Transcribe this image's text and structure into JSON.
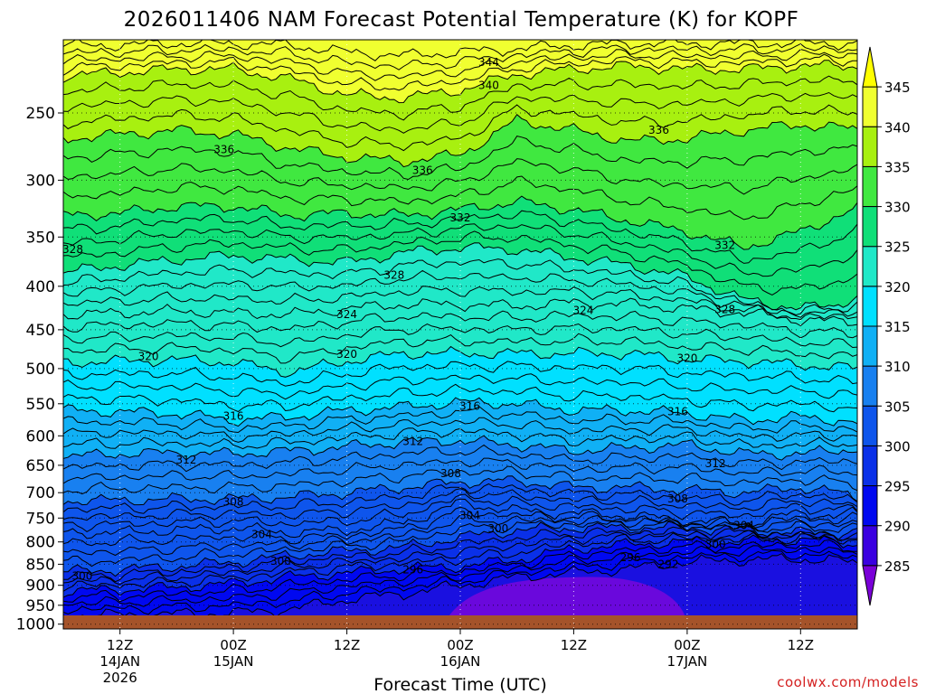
{
  "chart_data": {
    "type": "heatmap",
    "title": "2026011406 NAM Forecast Potential Temperature (K) for KOPF",
    "xlabel": "Forecast Time (UTC)",
    "ylabel": "",
    "credit": "coolwx.com/models",
    "y_axis": {
      "unit": "hPa",
      "scale": "log",
      "range": [
        1013,
        205
      ],
      "inverted": true,
      "ticks": [
        1000,
        950,
        900,
        850,
        800,
        750,
        700,
        650,
        600,
        550,
        500,
        450,
        400,
        350,
        300,
        250
      ]
    },
    "x_axis": {
      "unit": "forecast hour",
      "range": [
        0,
        84
      ],
      "ticks": [
        {
          "hour": 6,
          "lines": [
            "12Z",
            "14JAN",
            "2026"
          ]
        },
        {
          "hour": 18,
          "lines": [
            "00Z",
            "15JAN"
          ]
        },
        {
          "hour": 30,
          "lines": [
            "12Z"
          ]
        },
        {
          "hour": 42,
          "lines": [
            "00Z",
            "16JAN"
          ]
        },
        {
          "hour": 54,
          "lines": [
            "12Z"
          ]
        },
        {
          "hour": 66,
          "lines": [
            "00Z",
            "17JAN"
          ]
        },
        {
          "hour": 78,
          "lines": [
            "12Z"
          ]
        }
      ]
    },
    "grid": true,
    "colorbar": {
      "levels": [
        285,
        290,
        295,
        300,
        305,
        310,
        315,
        320,
        325,
        330,
        335,
        340,
        345
      ],
      "labels": [
        "285",
        "290",
        "295",
        "300",
        "305",
        "310",
        "315",
        "320",
        "325",
        "330",
        "335",
        "340",
        "345"
      ],
      "colors": [
        "#7a00d8",
        "#3a00e0",
        "#0008f0",
        "#0a30e8",
        "#0e55ec",
        "#1880f0",
        "#10b0f5",
        "#00e0ff",
        "#20e8c8",
        "#10df78",
        "#40e840",
        "#a8f010",
        "#f0ff30",
        "#ffff00"
      ]
    },
    "isentropes_hPa": [
      {
        "theta": 292,
        "pressure": [
          975,
          975,
          972,
          970,
          960,
          935,
          920,
          900,
          880,
          870,
          860,
          845,
          840,
          838,
          842,
          848
        ]
      },
      {
        "theta": 296,
        "pressure": [
          915,
          910,
          905,
          895,
          880,
          870,
          860,
          855,
          840,
          815,
          805,
          800,
          800,
          795,
          800,
          805
        ]
      },
      {
        "theta": 300,
        "pressure": [
          868,
          862,
          855,
          845,
          830,
          820,
          812,
          790,
          775,
          770,
          770,
          770,
          775,
          780,
          780,
          778
        ]
      },
      {
        "theta": 304,
        "pressure": [
          780,
          780,
          775,
          770,
          780,
          775,
          760,
          720,
          735,
          740,
          745,
          755,
          760,
          740,
          745,
          740
        ]
      },
      {
        "theta": 308,
        "pressure": [
          715,
          715,
          712,
          712,
          708,
          700,
          690,
          680,
          678,
          690,
          690,
          695,
          700,
          690,
          700,
          710
        ]
      },
      {
        "theta": 312,
        "pressure": [
          635,
          630,
          628,
          630,
          625,
          618,
          610,
          608,
          615,
          625,
          620,
          615,
          630,
          630,
          625,
          620
        ]
      },
      {
        "theta": 316,
        "pressure": [
          560,
          562,
          565,
          575,
          570,
          560,
          555,
          548,
          550,
          560,
          560,
          565,
          575,
          570,
          575,
          580
        ]
      },
      {
        "theta": 320,
        "pressure": [
          492,
          490,
          488,
          492,
          505,
          490,
          480,
          480,
          480,
          480,
          480,
          488,
          490,
          495,
          498,
          500
        ]
      },
      {
        "theta": 324,
        "pressure": [
          432,
          430,
          428,
          430,
          432,
          425,
          420,
          420,
          422,
          418,
          420,
          425,
          430,
          438,
          440,
          440
        ]
      },
      {
        "theta": 328,
        "pressure": [
          385,
          378,
          372,
          368,
          372,
          375,
          365,
          360,
          362,
          370,
          378,
          390,
          415,
          425,
          420,
          410
        ]
      },
      {
        "theta": 332,
        "pressure": [
          330,
          328,
          322,
          322,
          330,
          328,
          330,
          325,
          318,
          325,
          335,
          345,
          360,
          345,
          330,
          325
        ]
      },
      {
        "theta": 336,
        "pressure": [
          268,
          265,
          262,
          265,
          275,
          282,
          285,
          280,
          255,
          262,
          270,
          268,
          262,
          258,
          260,
          262
        ]
      },
      {
        "theta": 340,
        "pressure": [
          226,
          224,
          222,
          222,
          228,
          238,
          240,
          235,
          225,
          222,
          220,
          222,
          222,
          220,
          220,
          220
        ]
      },
      {
        "theta": 344,
        "pressure": [
          208,
          208,
          207,
          207,
          208,
          212,
          214,
          212,
          210,
          208,
          207,
          207,
          207,
          207,
          207,
          207
        ]
      }
    ],
    "isentrope_hours": [
      0,
      6,
      12,
      18,
      24,
      30,
      36,
      42,
      48,
      54,
      60,
      66,
      72,
      78,
      82,
      84
    ],
    "contour_labels": [
      {
        "text": "344",
        "hour": 45,
        "pressure": 218
      },
      {
        "text": "340",
        "hour": 45,
        "pressure": 232
      },
      {
        "text": "336",
        "hour": 17,
        "pressure": 276
      },
      {
        "text": "336",
        "hour": 38,
        "pressure": 292
      },
      {
        "text": "336",
        "hour": 63,
        "pressure": 262
      },
      {
        "text": "332",
        "hour": 42,
        "pressure": 332
      },
      {
        "text": "332",
        "hour": 70,
        "pressure": 358
      },
      {
        "text": "328",
        "hour": 1,
        "pressure": 362
      },
      {
        "text": "328",
        "hour": 35,
        "pressure": 388
      },
      {
        "text": "328",
        "hour": 70,
        "pressure": 426
      },
      {
        "text": "324",
        "hour": 30,
        "pressure": 432
      },
      {
        "text": "324",
        "hour": 55,
        "pressure": 427
      },
      {
        "text": "320",
        "hour": 9,
        "pressure": 484
      },
      {
        "text": "320",
        "hour": 30,
        "pressure": 481
      },
      {
        "text": "320",
        "hour": 66,
        "pressure": 486
      },
      {
        "text": "316",
        "hour": 18,
        "pressure": 569
      },
      {
        "text": "316",
        "hour": 43,
        "pressure": 554
      },
      {
        "text": "316",
        "hour": 65,
        "pressure": 562
      },
      {
        "text": "312",
        "hour": 13,
        "pressure": 641
      },
      {
        "text": "312",
        "hour": 37,
        "pressure": 609
      },
      {
        "text": "312",
        "hour": 69,
        "pressure": 647
      },
      {
        "text": "308",
        "hour": 18,
        "pressure": 718
      },
      {
        "text": "308",
        "hour": 41,
        "pressure": 665
      },
      {
        "text": "308",
        "hour": 65,
        "pressure": 712
      },
      {
        "text": "304",
        "hour": 21,
        "pressure": 784
      },
      {
        "text": "304",
        "hour": 43,
        "pressure": 745
      },
      {
        "text": "304",
        "hour": 72,
        "pressure": 765
      },
      {
        "text": "300",
        "hour": 2,
        "pressure": 878
      },
      {
        "text": "300",
        "hour": 23,
        "pressure": 843
      },
      {
        "text": "300",
        "hour": 46,
        "pressure": 772
      },
      {
        "text": "300",
        "hour": 69,
        "pressure": 806
      },
      {
        "text": "296",
        "hour": 37,
        "pressure": 863
      },
      {
        "text": "296",
        "hour": 60,
        "pressure": 835
      },
      {
        "text": "292",
        "hour": 64,
        "pressure": 850
      }
    ]
  }
}
